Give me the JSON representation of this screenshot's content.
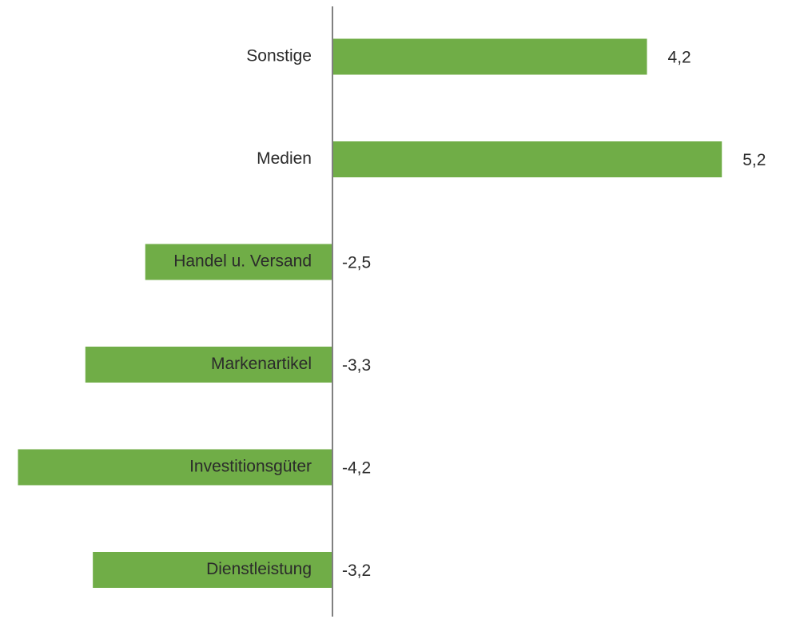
{
  "chart_data": {
    "type": "bar",
    "orientation": "horizontal",
    "categories": [
      "Sonstige",
      "Medien",
      "Handel u. Versand",
      "Markenartikel",
      "Investitionsgüter",
      "Dienstleistung"
    ],
    "value_labels": [
      "4,2",
      "5,2",
      "-2,5",
      "-3,3",
      "-4,2",
      "-3,2"
    ],
    "values": [
      4.2,
      5.2,
      -2.5,
      -3.3,
      -4.2,
      -3.2
    ],
    "bar_color": "#70ad47",
    "axis_color": "#808080",
    "title": "",
    "xlabel": "",
    "ylabel": "",
    "grid": false
  }
}
